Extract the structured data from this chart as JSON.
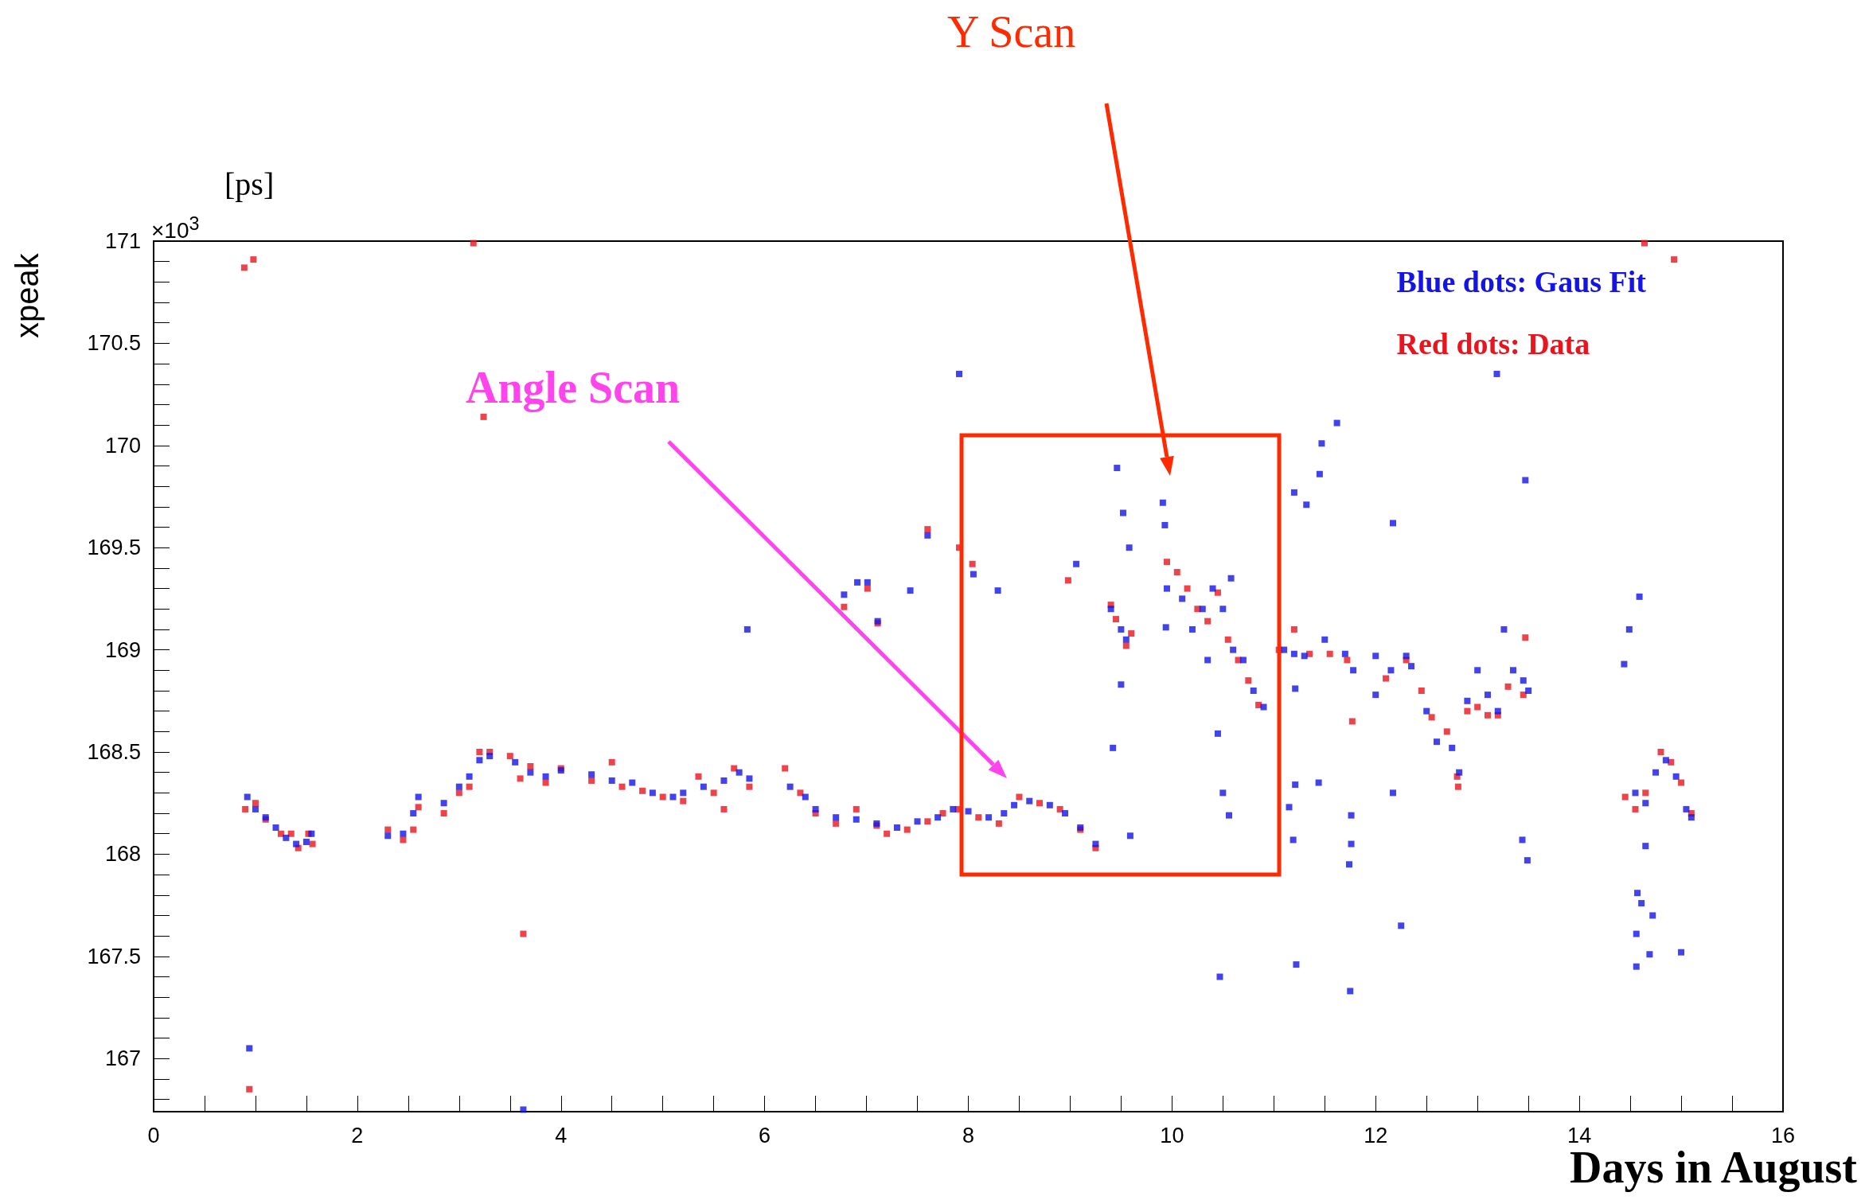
{
  "chart_data": {
    "type": "scatter",
    "xlabel": "Days in August",
    "ylabel": "xpeak",
    "xlim": [
      0,
      16
    ],
    "xticks": [
      0,
      2,
      4,
      6,
      8,
      10,
      12,
      14,
      16
    ],
    "ylim": [
      166.74,
      171
    ],
    "yticks": [
      167,
      167.5,
      168,
      168.5,
      169,
      169.5,
      170,
      170.5,
      171
    ],
    "grid": false,
    "legend": "top right",
    "marker": "square",
    "annotations": [
      "Y Scan",
      "Angle Scan",
      "[ps]",
      "×10$^{3}$"
    ],
    "series": [
      {
        "name": "Red dots: Data",
        "color": "#e8141e",
        "x": [
          0.9,
          1.0,
          1.1,
          1.25,
          1.35,
          1.42,
          1.52,
          1.56,
          2.3,
          2.45,
          2.55,
          2.6,
          2.85,
          3.0,
          3.1,
          3.2,
          3.3,
          3.5,
          3.6,
          3.7,
          3.85,
          4.0,
          4.3,
          4.5,
          4.6,
          4.8,
          5.0,
          5.2,
          5.35,
          5.5,
          5.6,
          5.7,
          5.85,
          6.2,
          6.35,
          6.5,
          6.7,
          6.9,
          7.1,
          7.2,
          7.4,
          7.6,
          7.75,
          7.9,
          8.1,
          8.3,
          8.5,
          8.7,
          8.9,
          9.1,
          9.25,
          9.4,
          9.45,
          9.55,
          9.6,
          9.95,
          10.05,
          10.15,
          10.25,
          10.35,
          10.45,
          10.55,
          10.65,
          10.75,
          10.85,
          11.05,
          11.2,
          11.35,
          11.55,
          11.72,
          12.1,
          12.3,
          12.45,
          12.55,
          12.7,
          12.8,
          12.9,
          13.0,
          13.1,
          13.2,
          13.3,
          13.45,
          14.45,
          14.55,
          14.65,
          14.8,
          14.9,
          15.0,
          15.1,
          0.89,
          0.98,
          3.14,
          3.24,
          3.63,
          0.94,
          14.64,
          14.93,
          7.91,
          7.6,
          8.04,
          8.98,
          6.78,
          7.01,
          7.11,
          13.47,
          11.77,
          12.81
        ],
        "values": [
          168.22,
          168.25,
          168.17,
          168.1,
          168.1,
          168.03,
          168.1,
          168.05,
          168.12,
          168.07,
          168.12,
          168.23,
          168.2,
          168.3,
          168.33,
          168.5,
          168.5,
          168.48,
          168.37,
          168.43,
          168.35,
          168.42,
          168.36,
          168.45,
          168.33,
          168.31,
          168.28,
          168.26,
          168.38,
          168.3,
          168.22,
          168.42,
          168.33,
          168.42,
          168.3,
          168.2,
          168.15,
          168.22,
          168.14,
          168.1,
          168.12,
          168.16,
          168.2,
          168.22,
          168.18,
          168.15,
          168.28,
          168.25,
          168.22,
          168.12,
          168.03,
          169.22,
          169.15,
          169.02,
          169.08,
          169.43,
          169.38,
          169.3,
          169.2,
          169.14,
          169.28,
          169.05,
          168.95,
          168.85,
          168.73,
          169.0,
          169.1,
          168.98,
          168.98,
          168.95,
          168.86,
          168.95,
          168.8,
          168.67,
          168.6,
          168.38,
          168.7,
          168.72,
          168.68,
          168.68,
          168.82,
          168.78,
          168.28,
          168.22,
          168.3,
          168.5,
          168.45,
          168.35,
          168.2,
          170.87,
          170.91,
          170.99,
          170.14,
          167.61,
          166.85,
          170.99,
          170.91,
          169.5,
          169.59,
          169.42,
          169.34,
          169.21,
          169.3,
          169.13,
          169.06,
          168.65,
          168.33
        ]
      },
      {
        "name": "Blue dots: Gaus Fit",
        "color": "#1414e6",
        "x": [
          0.92,
          1.0,
          1.1,
          1.2,
          1.3,
          1.4,
          1.5,
          1.55,
          2.3,
          2.45,
          2.55,
          2.6,
          2.85,
          3.0,
          3.1,
          3.2,
          3.3,
          3.55,
          3.7,
          3.85,
          4.0,
          4.3,
          4.5,
          4.7,
          4.9,
          5.1,
          5.2,
          5.4,
          5.6,
          5.75,
          5.85,
          6.25,
          6.4,
          6.5,
          6.7,
          6.9,
          7.1,
          7.3,
          7.5,
          7.7,
          7.85,
          8.0,
          8.2,
          8.35,
          8.45,
          8.6,
          8.8,
          8.95,
          9.1,
          9.25,
          9.4,
          9.5,
          9.55,
          9.95,
          10.1,
          10.2,
          10.3,
          10.4,
          10.5,
          10.6,
          10.7,
          10.8,
          10.9,
          11.1,
          11.2,
          11.3,
          11.5,
          11.7,
          11.78,
          12.15,
          12.3,
          12.35,
          12.5,
          12.6,
          12.75,
          12.82,
          12.9,
          13.0,
          13.1,
          13.2,
          13.35,
          13.45,
          13.5,
          14.55,
          14.65,
          14.75,
          14.85,
          14.95,
          15.05,
          15.1,
          7.91,
          9.46,
          9.52,
          9.58,
          9.91,
          9.93,
          9.94,
          10.35,
          10.45,
          10.5,
          10.56,
          10.47,
          10.58,
          9.5,
          9.42,
          9.59,
          8.29,
          8.05,
          9.06,
          11.2,
          11.32,
          11.45,
          11.47,
          11.62,
          11.21,
          11.21,
          11.15,
          11.19,
          11.22,
          11.44,
          11.76,
          11.76,
          11.74,
          11.75,
          12.17,
          12.0,
          12.0,
          12.17,
          12.25,
          13.19,
          13.26,
          13.47,
          13.44,
          13.49,
          14.59,
          14.49,
          14.44,
          14.65,
          14.57,
          14.61,
          14.72,
          14.56,
          14.69,
          14.56,
          15.0,
          5.83,
          6.78,
          6.91,
          7.01,
          7.11,
          7.43,
          7.6,
          0.94,
          3.63
        ],
        "values": [
          168.28,
          168.22,
          168.18,
          168.13,
          168.08,
          168.05,
          168.06,
          168.1,
          168.09,
          168.1,
          168.2,
          168.28,
          168.25,
          168.33,
          168.38,
          168.46,
          168.48,
          168.45,
          168.4,
          168.38,
          168.41,
          168.39,
          168.36,
          168.35,
          168.3,
          168.28,
          168.3,
          168.33,
          168.36,
          168.4,
          168.37,
          168.33,
          168.28,
          168.22,
          168.18,
          168.17,
          168.15,
          168.13,
          168.16,
          168.18,
          168.22,
          168.21,
          168.18,
          168.2,
          168.24,
          168.26,
          168.24,
          168.2,
          168.13,
          168.05,
          169.2,
          169.1,
          169.05,
          169.3,
          169.25,
          169.1,
          169.2,
          169.3,
          169.2,
          169.0,
          168.95,
          168.8,
          168.72,
          169.0,
          168.98,
          168.97,
          169.05,
          168.98,
          168.9,
          168.9,
          168.97,
          168.92,
          168.7,
          168.55,
          168.52,
          168.4,
          168.75,
          168.9,
          168.78,
          168.7,
          168.9,
          168.85,
          168.8,
          168.3,
          168.25,
          168.4,
          168.46,
          168.38,
          168.22,
          168.18,
          170.35,
          169.89,
          169.67,
          169.5,
          169.72,
          169.61,
          169.11,
          168.95,
          168.59,
          168.3,
          168.19,
          167.4,
          169.35,
          168.83,
          168.52,
          168.09,
          169.29,
          169.37,
          169.42,
          169.77,
          169.71,
          169.86,
          170.01,
          170.11,
          168.81,
          168.34,
          168.23,
          168.07,
          167.46,
          168.35,
          168.19,
          168.05,
          167.95,
          167.33,
          169.62,
          168.97,
          168.78,
          168.3,
          167.65,
          170.35,
          169.1,
          169.83,
          168.07,
          167.97,
          169.26,
          169.1,
          168.93,
          168.04,
          167.81,
          167.76,
          167.7,
          167.61,
          167.51,
          167.45,
          167.52,
          169.1,
          169.27,
          169.33,
          169.33,
          169.14,
          169.29,
          169.56,
          167.05,
          166.75
        ]
      }
    ]
  }
}
